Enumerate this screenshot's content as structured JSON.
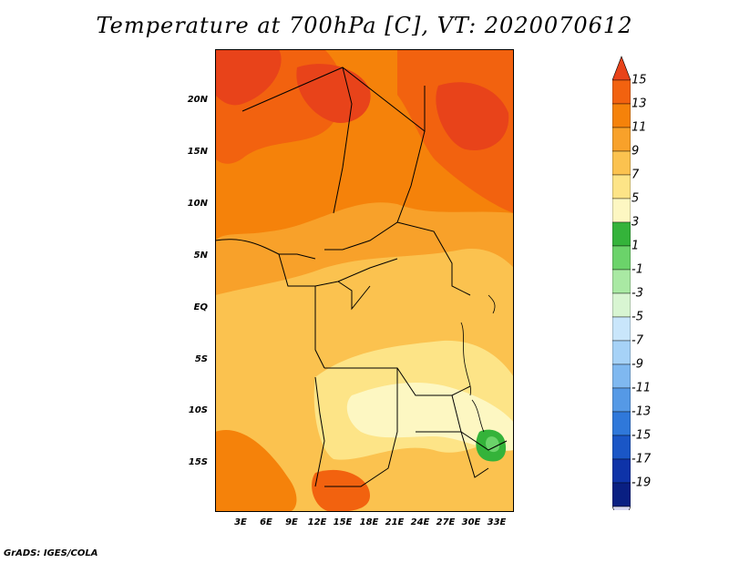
{
  "title": "Temperature at 700hPa [C], VT: 2020070612",
  "credit": "GrADS: IGES/COLA",
  "lat_labels": [
    "20N",
    "15N",
    "10N",
    "5N",
    "EQ",
    "5S",
    "10S",
    "15S"
  ],
  "lon_labels": [
    "3E",
    "6E",
    "9E",
    "12E",
    "15E",
    "18E",
    "21E",
    "24E",
    "27E",
    "30E",
    "33E"
  ],
  "colorbar": {
    "labels": [
      "15",
      "13",
      "11",
      "9",
      "7",
      "5",
      "3",
      "1",
      "-1",
      "-3",
      "-5",
      "-7",
      "-9",
      "-11",
      "-13",
      "-15",
      "-17",
      "-19"
    ],
    "colors": [
      "#e8431a",
      "#f2620f",
      "#f5820a",
      "#f8a12a",
      "#fbc24f",
      "#fde487",
      "#fdf7c2",
      "#34b33a",
      "#6bd36a",
      "#a9e9a3",
      "#d8f5d2",
      "#c9e6fb",
      "#a6d2f7",
      "#7fb8f0",
      "#5599e6",
      "#2f78da",
      "#1a56c6",
      "#0e33a8",
      "#091f82"
    ],
    "overflow_low": "#d8d8f0"
  },
  "map_colors": {
    "c13": "#e8431a",
    "c11": "#f2620f",
    "c9": "#f5820a",
    "c7": "#f8a12a",
    "c5": "#fbc24f",
    "c3": "#fde487",
    "c1": "#fdf7c2",
    "green": "#34b33a",
    "lightgreen": "#6bd36a"
  }
}
